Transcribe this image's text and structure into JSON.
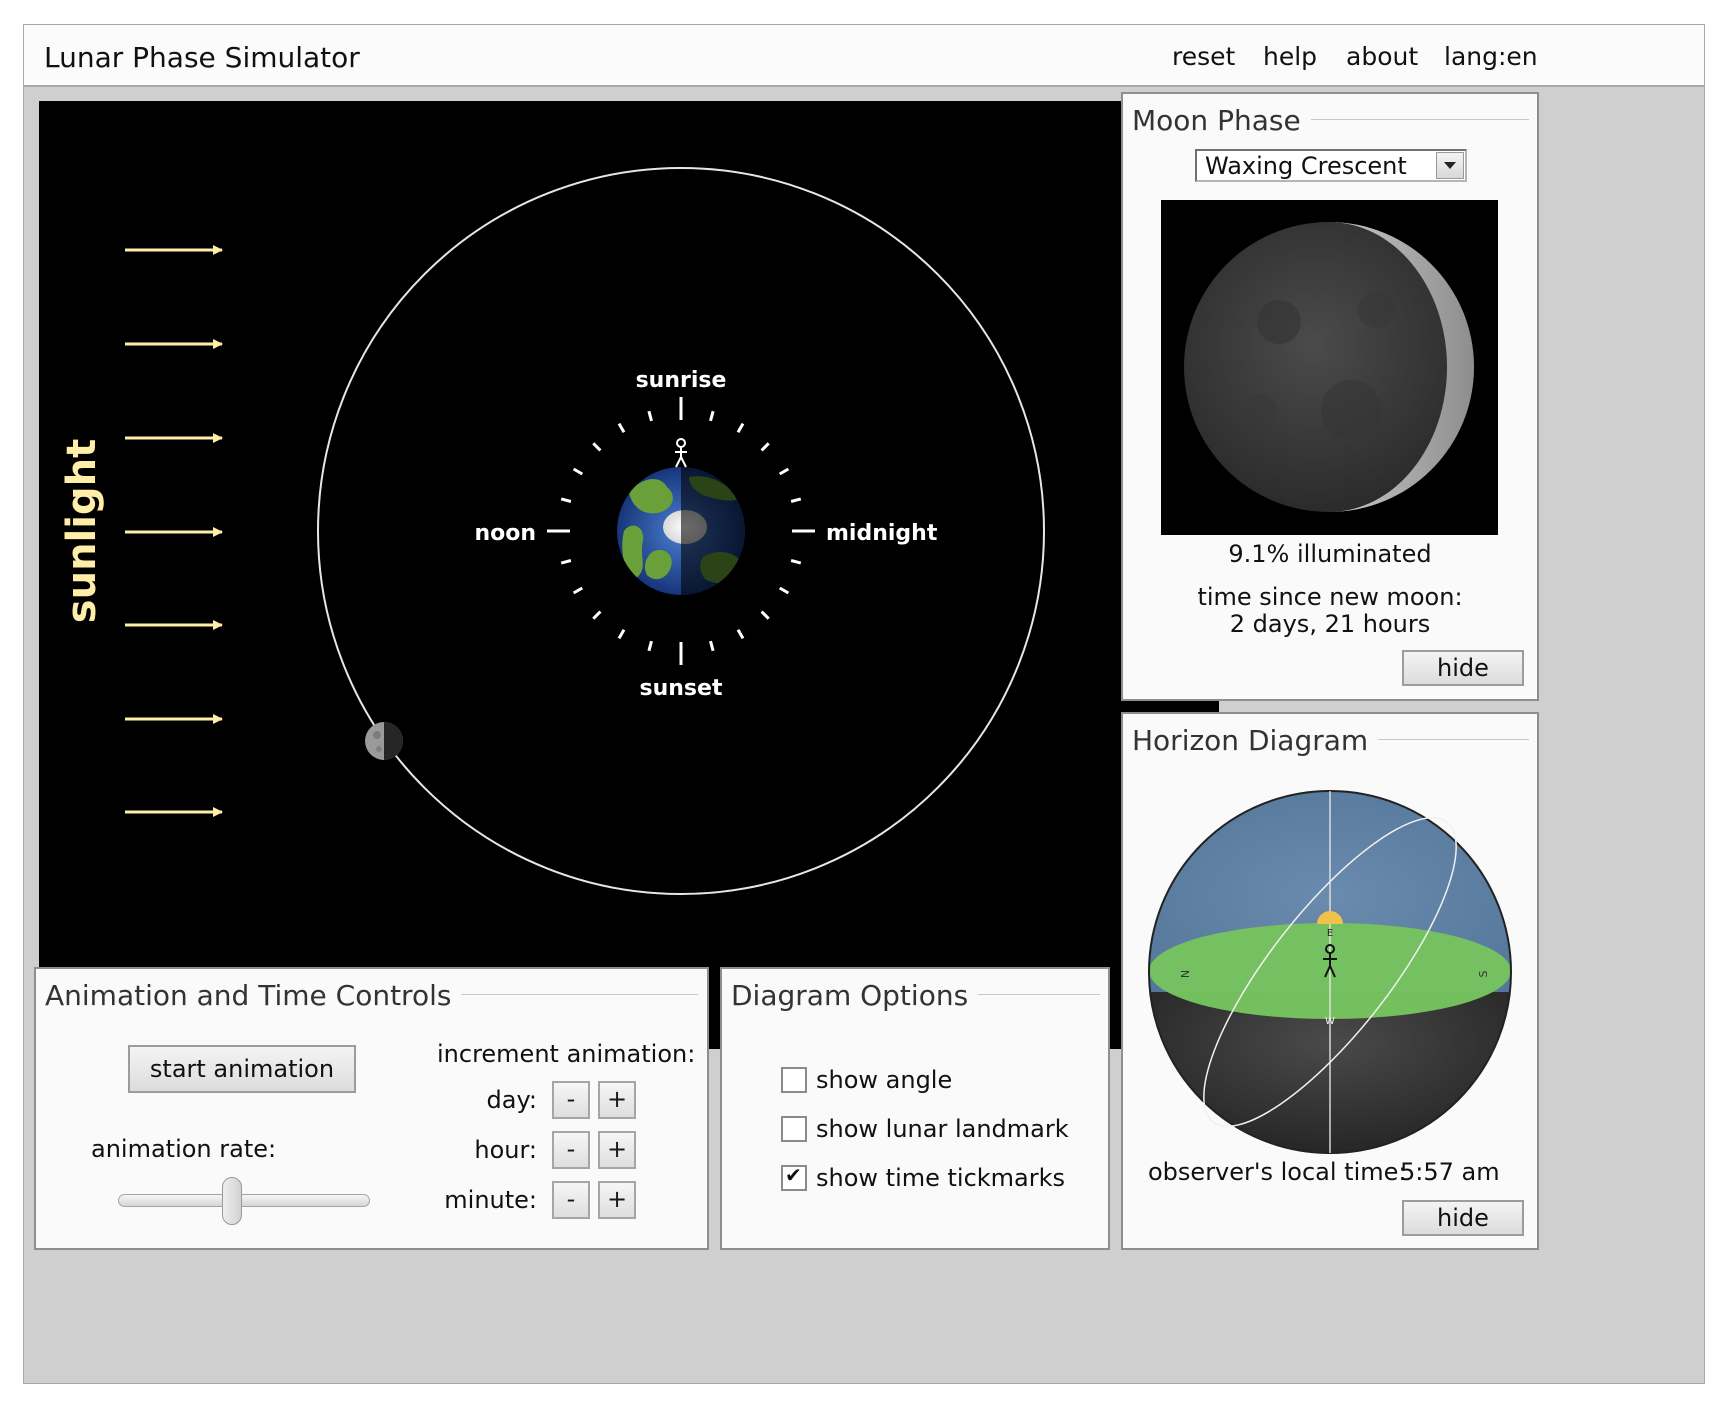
{
  "app": {
    "title": "Lunar Phase Simulator",
    "menu": [
      "reset",
      "help",
      "about",
      "lang:en"
    ]
  },
  "orbit_view": {
    "sunlight_label": "sunlight",
    "time_labels": {
      "top": "sunrise",
      "left": "noon",
      "right": "midnight",
      "bottom": "sunset"
    },
    "colors": {
      "sunlight": "#ffeea8",
      "orbit": "#ffffff",
      "background": "#000000"
    }
  },
  "controls": {
    "title": "Animation and Time Controls",
    "start_button": "start animation",
    "rate_label": "animation rate:",
    "rate_value": 0.45,
    "increment_label": "increment animation:",
    "increments": [
      {
        "label": "day:",
        "minus": "-",
        "plus": "+"
      },
      {
        "label": "hour:",
        "minus": "-",
        "plus": "+"
      },
      {
        "label": "minute:",
        "minus": "-",
        "plus": "+"
      }
    ]
  },
  "options": {
    "title": "Diagram Options",
    "items": [
      {
        "label": "show angle",
        "checked": false
      },
      {
        "label": "show lunar landmark",
        "checked": false
      },
      {
        "label": "show time tickmarks",
        "checked": true
      }
    ],
    "check_mark": "✔"
  },
  "moon_phase": {
    "title": "Moon Phase",
    "selected_phase": "Waxing Crescent",
    "illuminated": "9.1% illuminated",
    "time_label": "time since new moon:",
    "time_value": "2 days, 21 hours",
    "hide_button": "hide"
  },
  "horizon": {
    "title": "Horizon Diagram",
    "local_time_label": "observer's local time:",
    "local_time_value": "5:57 am",
    "hide_button": "hide",
    "colors": {
      "sky": "#5d7ea0",
      "ground": "#76c35f",
      "below": "#3a3a3a",
      "sun": "#f0c24a"
    }
  }
}
